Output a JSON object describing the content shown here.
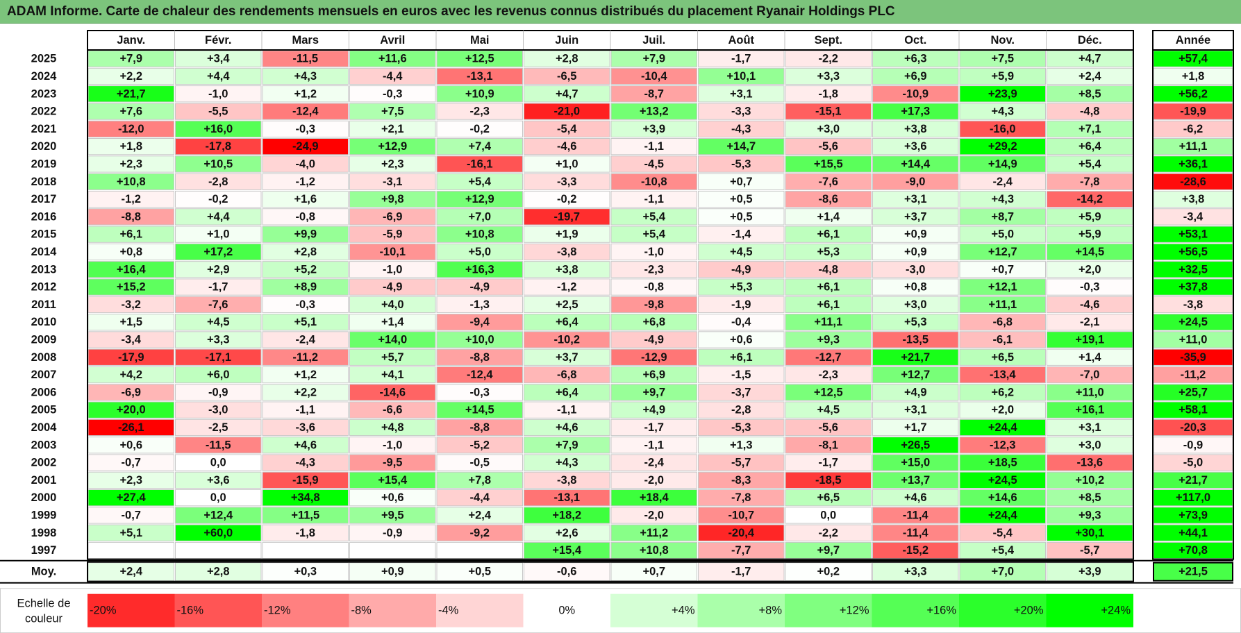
{
  "title": "ADAM Informe. Carte de chaleur des rendements mensuels en euros avec les revenus connus distribués du placement Ryanair Holdings PLC",
  "chart_data": {
    "type": "heatmap",
    "title": "ADAM Informe. Carte de chaleur des rendements mensuels en euros avec les revenus connus distribués du placement Ryanair Holdings PLC",
    "columns": [
      "Janv.",
      "Févr.",
      "Mars",
      "Avril",
      "Mai",
      "Juin",
      "Juil.",
      "Août",
      "Sept.",
      "Oct.",
      "Nov.",
      "Déc."
    ],
    "year_column_label": "Année",
    "rows": [
      {
        "year": "2025",
        "values": [
          "+7,9",
          "+3,4",
          "-11,5",
          "+11,6",
          "+12,5",
          "+2,8",
          "+7,9",
          "-1,7",
          "-2,2",
          "+6,3",
          "+7,5",
          "+4,7"
        ],
        "annual": "+57,4"
      },
      {
        "year": "2024",
        "values": [
          "+2,2",
          "+4,4",
          "+4,3",
          "-4,4",
          "-13,1",
          "-6,5",
          "-10,4",
          "+10,1",
          "+3,3",
          "+6,9",
          "+5,9",
          "+2,4"
        ],
        "annual": "+1,8"
      },
      {
        "year": "2023",
        "values": [
          "+21,7",
          "-1,0",
          "+1,2",
          "-0,3",
          "+10,9",
          "+4,7",
          "-8,7",
          "+3,1",
          "-1,8",
          "-10,9",
          "+23,9",
          "+8,5"
        ],
        "annual": "+56,2"
      },
      {
        "year": "2022",
        "values": [
          "+7,6",
          "-5,5",
          "-12,4",
          "+7,5",
          "-2,3",
          "-21,0",
          "+13,2",
          "-3,3",
          "-15,1",
          "+17,3",
          "+4,3",
          "-4,8"
        ],
        "annual": "-19,9"
      },
      {
        "year": "2021",
        "values": [
          "-12,0",
          "+16,0",
          "-0,3",
          "+2,1",
          "-0,2",
          "-5,4",
          "+3,9",
          "-4,3",
          "+3,0",
          "+3,8",
          "-16,0",
          "+7,1"
        ],
        "annual": "-6,2"
      },
      {
        "year": "2020",
        "values": [
          "+1,8",
          "-17,8",
          "-24,9",
          "+12,9",
          "+7,4",
          "-4,6",
          "-1,1",
          "+14,7",
          "-5,6",
          "+3,6",
          "+29,2",
          "+6,4"
        ],
        "annual": "+11,1"
      },
      {
        "year": "2019",
        "values": [
          "+2,3",
          "+10,5",
          "-4,0",
          "+2,3",
          "-16,1",
          "+1,0",
          "-4,5",
          "-5,3",
          "+15,5",
          "+14,4",
          "+14,9",
          "+5,4"
        ],
        "annual": "+36,1"
      },
      {
        "year": "2018",
        "values": [
          "+10,8",
          "-2,8",
          "-1,2",
          "-3,1",
          "+5,4",
          "-3,3",
          "-10,8",
          "+0,7",
          "-7,6",
          "-9,0",
          "-2,4",
          "-7,8"
        ],
        "annual": "-28,6"
      },
      {
        "year": "2017",
        "values": [
          "-1,2",
          "-0,2",
          "+1,6",
          "+9,8",
          "+12,9",
          "-0,2",
          "-1,1",
          "+0,5",
          "-8,6",
          "+3,1",
          "+4,3",
          "-14,2"
        ],
        "annual": "+3,8"
      },
      {
        "year": "2016",
        "values": [
          "-8,8",
          "+4,4",
          "-0,8",
          "-6,9",
          "+7,0",
          "-19,7",
          "+5,4",
          "+0,5",
          "+1,4",
          "+3,7",
          "+8,7",
          "+5,9"
        ],
        "annual": "-3,4"
      },
      {
        "year": "2015",
        "values": [
          "+6,1",
          "+1,0",
          "+9,9",
          "-5,9",
          "+10,8",
          "+1,9",
          "+5,4",
          "-1,4",
          "+6,1",
          "+0,9",
          "+5,0",
          "+5,9"
        ],
        "annual": "+53,1"
      },
      {
        "year": "2014",
        "values": [
          "+0,8",
          "+17,2",
          "+2,8",
          "-10,1",
          "+5,0",
          "-3,8",
          "-1,0",
          "+4,5",
          "+5,3",
          "+0,9",
          "+12,7",
          "+14,5"
        ],
        "annual": "+56,5"
      },
      {
        "year": "2013",
        "values": [
          "+16,4",
          "+2,9",
          "+5,2",
          "-1,0",
          "+16,3",
          "+3,8",
          "-2,3",
          "-4,9",
          "-4,8",
          "-3,0",
          "+0,7",
          "+2,0"
        ],
        "annual": "+32,5"
      },
      {
        "year": "2012",
        "values": [
          "+15,2",
          "-1,7",
          "+8,9",
          "-4,9",
          "-4,9",
          "-1,2",
          "-0,8",
          "+5,3",
          "+6,1",
          "+0,8",
          "+12,1",
          "-0,3"
        ],
        "annual": "+37,8"
      },
      {
        "year": "2011",
        "values": [
          "-3,2",
          "-7,6",
          "-0,3",
          "+4,0",
          "-1,3",
          "+2,5",
          "-9,8",
          "-1,9",
          "+6,1",
          "+3,0",
          "+11,1",
          "-4,6"
        ],
        "annual": "-3,8"
      },
      {
        "year": "2010",
        "values": [
          "+1,5",
          "+4,5",
          "+5,1",
          "+1,4",
          "-9,4",
          "+6,4",
          "+6,8",
          "-0,4",
          "+11,1",
          "+5,3",
          "-6,8",
          "-2,1"
        ],
        "annual": "+24,5"
      },
      {
        "year": "2009",
        "values": [
          "-3,4",
          "+3,3",
          "-2,4",
          "+14,0",
          "+10,0",
          "-10,2",
          "-4,9",
          "+0,6",
          "+9,3",
          "-13,5",
          "-6,1",
          "+19,1"
        ],
        "annual": "+11,0"
      },
      {
        "year": "2008",
        "values": [
          "-17,9",
          "-17,1",
          "-11,2",
          "+5,7",
          "-8,8",
          "+3,7",
          "-12,9",
          "+6,1",
          "-12,7",
          "+21,7",
          "+6,5",
          "+1,4"
        ],
        "annual": "-35,9"
      },
      {
        "year": "2007",
        "values": [
          "+4,2",
          "+6,0",
          "+1,2",
          "+4,1",
          "-12,4",
          "-6,8",
          "+6,9",
          "-1,5",
          "-2,3",
          "+12,7",
          "-13,4",
          "-7,0"
        ],
        "annual": "-11,2"
      },
      {
        "year": "2006",
        "values": [
          "-6,9",
          "-0,9",
          "+2,2",
          "-14,6",
          "-0,3",
          "+6,4",
          "+9,7",
          "-3,7",
          "+12,5",
          "+4,9",
          "+6,2",
          "+11,0"
        ],
        "annual": "+25,7"
      },
      {
        "year": "2005",
        "values": [
          "+20,0",
          "-3,0",
          "-1,1",
          "-6,6",
          "+14,5",
          "-1,1",
          "+4,9",
          "-2,8",
          "+4,5",
          "+3,1",
          "+2,0",
          "+16,1"
        ],
        "annual": "+58,1"
      },
      {
        "year": "2004",
        "values": [
          "-26,1",
          "-2,5",
          "-3,6",
          "+4,8",
          "-8,8",
          "+4,6",
          "-1,7",
          "-5,3",
          "-5,6",
          "+1,7",
          "+24,4",
          "+3,1"
        ],
        "annual": "-20,3"
      },
      {
        "year": "2003",
        "values": [
          "+0,6",
          "-11,5",
          "+4,6",
          "-1,0",
          "-5,2",
          "+7,9",
          "-1,1",
          "+1,3",
          "-8,1",
          "+26,5",
          "-12,3",
          "+3,0"
        ],
        "annual": "-0,9"
      },
      {
        "year": "2002",
        "values": [
          "-0,7",
          "0,0",
          "-4,3",
          "-9,5",
          "-0,5",
          "+4,3",
          "-2,4",
          "-5,7",
          "-1,7",
          "+15,0",
          "+18,5",
          "-13,6"
        ],
        "annual": "-5,0"
      },
      {
        "year": "2001",
        "values": [
          "+2,3",
          "+3,6",
          "-15,9",
          "+15,4",
          "+7,8",
          "-3,8",
          "-2,0",
          "-8,3",
          "-18,5",
          "+13,7",
          "+24,5",
          "+10,2"
        ],
        "annual": "+21,7"
      },
      {
        "year": "2000",
        "values": [
          "+27,4",
          "0,0",
          "+34,8",
          "+0,6",
          "-4,4",
          "-13,1",
          "+18,4",
          "-7,8",
          "+6,5",
          "+4,6",
          "+14,6",
          "+8,5"
        ],
        "annual": "+117,0"
      },
      {
        "year": "1999",
        "values": [
          "-0,7",
          "+12,4",
          "+11,5",
          "+9,5",
          "+2,4",
          "+18,2",
          "-2,0",
          "-10,7",
          "0,0",
          "-11,4",
          "+24,4",
          "+9,3"
        ],
        "annual": "+73,9"
      },
      {
        "year": "1998",
        "values": [
          "+5,1",
          "+60,0",
          "-1,8",
          "-0,9",
          "-9,2",
          "+2,6",
          "+11,2",
          "-20,4",
          "-2,2",
          "-11,4",
          "-5,4",
          "+30,1"
        ],
        "annual": "+44,1"
      },
      {
        "year": "1997",
        "values": [
          "",
          "",
          "",
          "",
          "",
          "+15,4",
          "+10,8",
          "-7,7",
          "+9,7",
          "-15,2",
          "+5,4",
          "-5,7"
        ],
        "annual": "+70,8"
      }
    ],
    "average_row": {
      "label": "Moy.",
      "values": [
        "+2,4",
        "+2,8",
        "+0,3",
        "+0,9",
        "+0,5",
        "-0,6",
        "+0,7",
        "-1,7",
        "+0,2",
        "+3,3",
        "+7,0",
        "+3,9"
      ],
      "annual": "+21,5"
    },
    "color_scale": {
      "label_line1": "Echelle de",
      "label_line2": "couleur",
      "steps": [
        "-20%",
        "-16%",
        "-12%",
        "-8%",
        "-4%",
        "0%",
        "+4%",
        "+8%",
        "+12%",
        "+16%",
        "+20%",
        "+24%"
      ]
    }
  },
  "colors": {
    "title_bg": "#7cc47c",
    "negative_max": "#ff0000",
    "neutral": "#ffffff",
    "positive_max": "#00ff00"
  }
}
